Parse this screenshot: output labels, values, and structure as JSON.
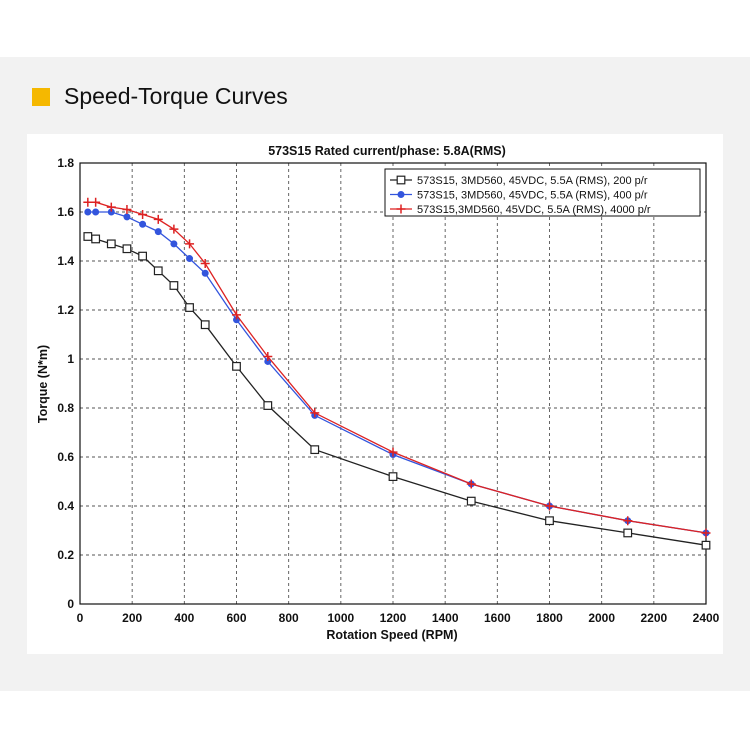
{
  "section": {
    "heading": "Speed-Torque Curves"
  },
  "colors": {
    "accent": "#f5b800",
    "band": "#f2f2f2",
    "series_200": "#222222",
    "series_400": "#3355dd",
    "series_4000": "#dd2222"
  },
  "chart_data": {
    "type": "line",
    "title": "573S15 Rated current/phase: 5.8A(RMS)",
    "xlabel": "Rotation Speed (RPM)",
    "ylabel": "Torque (N*m)",
    "xlim": [
      0,
      2400
    ],
    "ylim": [
      0,
      1.8
    ],
    "xticks": [
      0,
      200,
      400,
      600,
      800,
      1000,
      1200,
      1400,
      1600,
      1800,
      2000,
      2200,
      2400
    ],
    "yticks": [
      0,
      0.2,
      0.4,
      0.6,
      0.8,
      1,
      1.2,
      1.4,
      1.6,
      1.8
    ],
    "xtick_labels": [
      "0",
      "200",
      "400",
      "600",
      "800",
      "1000",
      "1200",
      "1400",
      "1600",
      "1800",
      "2000",
      "2200",
      "2400"
    ],
    "ytick_labels": [
      "0",
      "0.2",
      "0.4",
      "0.6",
      "0.8",
      "1",
      "1.2",
      "1.4",
      "1.6",
      "1.8"
    ],
    "grid": true,
    "legend_position": "top-right",
    "series": [
      {
        "name": "573S15, 3MD560, 45VDC, 5.5A (RMS), 200 p/r",
        "color": "#222222",
        "marker": "square",
        "x": [
          30,
          60,
          120,
          180,
          240,
          300,
          360,
          420,
          480,
          600,
          720,
          900,
          1200,
          1500,
          1800,
          2100,
          2400
        ],
        "y": [
          1.5,
          1.49,
          1.47,
          1.45,
          1.42,
          1.36,
          1.3,
          1.21,
          1.14,
          0.97,
          0.81,
          0.63,
          0.52,
          0.42,
          0.34,
          0.29,
          0.24
        ]
      },
      {
        "name": "573S15, 3MD560, 45VDC, 5.5A (RMS), 400 p/r",
        "color": "#3355dd",
        "marker": "circle",
        "x": [
          30,
          60,
          120,
          180,
          240,
          300,
          360,
          420,
          480,
          600,
          720,
          900,
          1200,
          1500,
          1800,
          2100,
          2400
        ],
        "y": [
          1.6,
          1.6,
          1.6,
          1.58,
          1.55,
          1.52,
          1.47,
          1.41,
          1.35,
          1.16,
          0.99,
          0.77,
          0.61,
          0.49,
          0.4,
          0.34,
          0.29
        ]
      },
      {
        "name": "573S15,3MD560, 45VDC, 5.5A (RMS), 4000 p/r",
        "color": "#dd2222",
        "marker": "plus",
        "x": [
          30,
          60,
          120,
          180,
          240,
          300,
          360,
          420,
          480,
          600,
          720,
          900,
          1200,
          1500,
          1800,
          2100,
          2400
        ],
        "y": [
          1.64,
          1.64,
          1.62,
          1.61,
          1.59,
          1.57,
          1.53,
          1.47,
          1.39,
          1.18,
          1.01,
          0.78,
          0.62,
          0.49,
          0.4,
          0.34,
          0.29
        ]
      }
    ]
  }
}
